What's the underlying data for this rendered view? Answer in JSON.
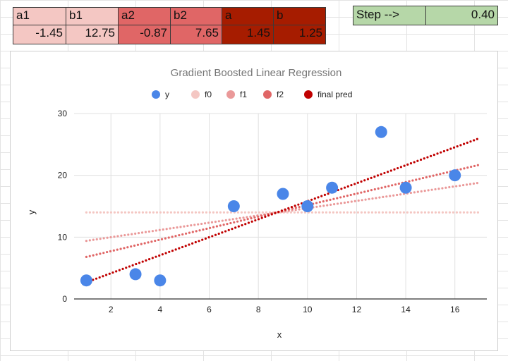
{
  "params_table": {
    "headers": [
      "a1",
      "b1",
      "a2",
      "b2",
      "a",
      "b"
    ],
    "values": [
      "-1.45",
      "12.75",
      "-0.87",
      "7.65",
      "1.45",
      "1.25"
    ],
    "colors": [
      "#f4c7c3",
      "#f4c7c3",
      "#e06666",
      "#e06666",
      "#a61c00",
      "#a61c00"
    ]
  },
  "step": {
    "label": "Step -->",
    "value": "0.40",
    "color": "#b6d7a8"
  },
  "chart_data": {
    "type": "scatter",
    "title": "Gradient Boosted Linear Regression",
    "xlabel": "x",
    "ylabel": "y",
    "xlim": [
      0.5,
      17.3
    ],
    "ylim": [
      0,
      30
    ],
    "xticks": [
      2,
      4,
      6,
      8,
      10,
      12,
      14,
      16
    ],
    "yticks": [
      0,
      10,
      20,
      30
    ],
    "grid": true,
    "legend_position": "top",
    "series": [
      {
        "name": "y",
        "kind": "points",
        "color": "#4a86e8",
        "points": [
          [
            1,
            3
          ],
          [
            3,
            4
          ],
          [
            4,
            3
          ],
          [
            7,
            15
          ],
          [
            9,
            17
          ],
          [
            10,
            15
          ],
          [
            11,
            18
          ],
          [
            13,
            27
          ],
          [
            14,
            18
          ],
          [
            16,
            20
          ]
        ]
      },
      {
        "name": "f0",
        "kind": "dotted-line",
        "color": "#f4c7c3",
        "points": [
          [
            1,
            14
          ],
          [
            17,
            14
          ]
        ]
      },
      {
        "name": "f1",
        "kind": "dotted-line",
        "color": "#ea9999",
        "points": [
          [
            1,
            9.4
          ],
          [
            17,
            18.8
          ]
        ]
      },
      {
        "name": "f2",
        "kind": "dotted-line",
        "color": "#e06666",
        "points": [
          [
            1,
            6.8
          ],
          [
            17,
            21.7
          ]
        ]
      },
      {
        "name": "final pred",
        "kind": "dotted-line",
        "color": "#c00000",
        "points": [
          [
            1,
            2.7
          ],
          [
            17,
            26
          ]
        ]
      }
    ]
  }
}
